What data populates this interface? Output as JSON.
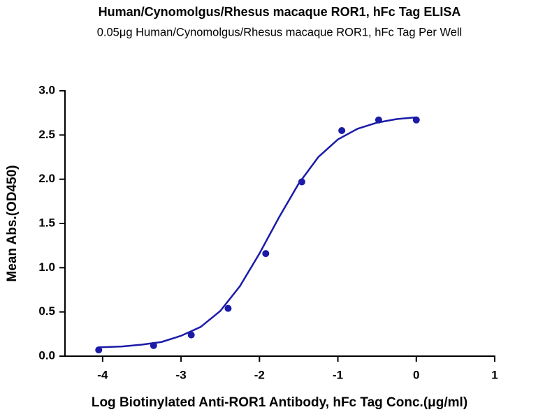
{
  "chart_data": {
    "type": "scatter",
    "title": "Human/Cynomolgus/Rhesus macaque ROR1, hFc Tag ELISA",
    "subtitle": "0.05μg Human/Cynomolgus/Rhesus macaque ROR1, hFc Tag Per Well",
    "x_label": "Log Biotinylated Anti-ROR1 Antibody, hFc Tag Conc.(μg/ml)",
    "y_label": "Mean Abs.(OD450)",
    "color": "#1b1ba8",
    "points": {
      "x": [
        -4.05,
        -3.35,
        -2.87,
        -2.4,
        -1.92,
        -1.46,
        -0.95,
        -0.48,
        0
      ],
      "values": [
        0.07,
        0.12,
        0.24,
        0.54,
        1.16,
        1.97,
        2.55,
        2.67,
        2.67
      ]
    },
    "fit": {
      "x": [
        -4.05,
        -3.75,
        -3.5,
        -3.25,
        -3.0,
        -2.75,
        -2.5,
        -2.25,
        -2.0,
        -1.75,
        -1.5,
        -1.25,
        -1.0,
        -0.75,
        -0.5,
        -0.25,
        0
      ],
      "values": [
        0.1,
        0.11,
        0.13,
        0.16,
        0.23,
        0.33,
        0.51,
        0.79,
        1.16,
        1.57,
        1.95,
        2.25,
        2.45,
        2.57,
        2.64,
        2.68,
        2.7
      ]
    },
    "xlim": [
      -4.48,
      1
    ],
    "ylim": [
      0,
      3
    ],
    "xticks": [
      -4,
      -3,
      -2,
      -1,
      0,
      1
    ],
    "yticks": [
      {
        "value": 0,
        "label": "0.0"
      },
      0.5,
      {
        "value": 1,
        "label": "1.0"
      },
      1.5,
      {
        "value": 2,
        "label": "2.0"
      },
      2.5,
      {
        "value": 3,
        "label": "3.0"
      }
    ]
  }
}
